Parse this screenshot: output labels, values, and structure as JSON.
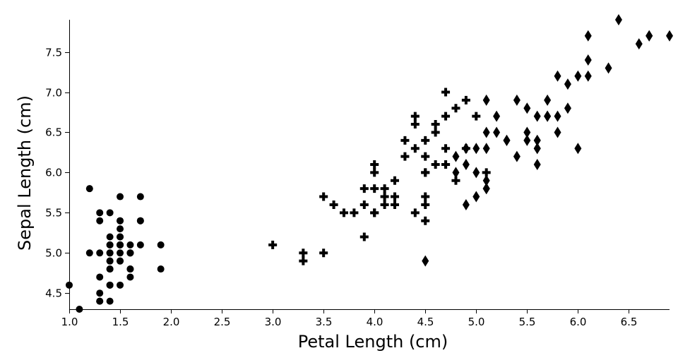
{
  "chart_data": {
    "type": "scatter",
    "xlabel": "Petal Length (cm)",
    "ylabel": "Sepal Length (cm)",
    "xlim": [
      1.0,
      6.9
    ],
    "ylim": [
      4.3,
      7.9
    ],
    "xticks": [
      "1.0",
      "1.5",
      "2.0",
      "2.5",
      "3.0",
      "3.5",
      "4.0",
      "4.5",
      "5.0",
      "5.5",
      "6.0",
      "6.5"
    ],
    "yticks": [
      "4.5",
      "5.0",
      "5.5",
      "6.0",
      "6.5",
      "7.0",
      "7.5"
    ],
    "grid": false,
    "legend": "none",
    "series": [
      {
        "marker": "circle",
        "points": [
          [
            1.4,
            5.1
          ],
          [
            1.4,
            4.9
          ],
          [
            1.3,
            4.7
          ],
          [
            1.5,
            4.6
          ],
          [
            1.4,
            5.0
          ],
          [
            1.7,
            5.4
          ],
          [
            1.4,
            4.6
          ],
          [
            1.5,
            5.0
          ],
          [
            1.4,
            4.4
          ],
          [
            1.5,
            4.9
          ],
          [
            1.5,
            5.4
          ],
          [
            1.6,
            4.8
          ],
          [
            1.4,
            4.8
          ],
          [
            1.1,
            4.3
          ],
          [
            1.2,
            5.8
          ],
          [
            1.5,
            5.7
          ],
          [
            1.3,
            5.4
          ],
          [
            1.4,
            5.1
          ],
          [
            1.7,
            5.7
          ],
          [
            1.5,
            5.1
          ],
          [
            1.7,
            5.4
          ],
          [
            1.5,
            5.1
          ],
          [
            1.0,
            4.6
          ],
          [
            1.7,
            5.1
          ],
          [
            1.9,
            4.8
          ],
          [
            1.6,
            5.0
          ],
          [
            1.6,
            5.0
          ],
          [
            1.5,
            5.2
          ],
          [
            1.4,
            5.2
          ],
          [
            1.6,
            4.7
          ],
          [
            1.6,
            4.8
          ],
          [
            1.5,
            5.4
          ],
          [
            1.5,
            5.2
          ],
          [
            1.4,
            5.5
          ],
          [
            1.5,
            4.9
          ],
          [
            1.2,
            5.0
          ],
          [
            1.3,
            5.5
          ],
          [
            1.4,
            4.9
          ],
          [
            1.3,
            4.4
          ],
          [
            1.5,
            5.1
          ],
          [
            1.3,
            5.0
          ],
          [
            1.3,
            4.5
          ],
          [
            1.3,
            4.4
          ],
          [
            1.6,
            5.0
          ],
          [
            1.9,
            5.1
          ],
          [
            1.4,
            4.8
          ],
          [
            1.6,
            5.1
          ],
          [
            1.4,
            4.6
          ],
          [
            1.5,
            5.3
          ],
          [
            1.4,
            5.0
          ]
        ]
      },
      {
        "marker": "plus",
        "points": [
          [
            4.7,
            7.0
          ],
          [
            4.5,
            6.4
          ],
          [
            4.9,
            6.9
          ],
          [
            4.0,
            5.5
          ],
          [
            4.6,
            6.5
          ],
          [
            4.5,
            5.7
          ],
          [
            4.7,
            6.3
          ],
          [
            3.3,
            4.9
          ],
          [
            4.6,
            6.6
          ],
          [
            3.9,
            5.2
          ],
          [
            3.5,
            5.0
          ],
          [
            4.2,
            5.9
          ],
          [
            4.0,
            6.0
          ],
          [
            4.7,
            6.1
          ],
          [
            3.6,
            5.6
          ],
          [
            4.4,
            6.7
          ],
          [
            4.5,
            5.6
          ],
          [
            4.1,
            5.8
          ],
          [
            4.5,
            6.2
          ],
          [
            3.9,
            5.6
          ],
          [
            4.8,
            5.9
          ],
          [
            4.0,
            6.1
          ],
          [
            4.9,
            6.3
          ],
          [
            4.7,
            6.1
          ],
          [
            4.3,
            6.4
          ],
          [
            4.4,
            6.6
          ],
          [
            4.8,
            6.8
          ],
          [
            5.0,
            6.7
          ],
          [
            4.5,
            6.0
          ],
          [
            3.5,
            5.7
          ],
          [
            3.8,
            5.5
          ],
          [
            3.7,
            5.5
          ],
          [
            3.9,
            5.8
          ],
          [
            5.1,
            6.0
          ],
          [
            4.5,
            5.4
          ],
          [
            4.5,
            6.0
          ],
          [
            4.7,
            6.7
          ],
          [
            4.4,
            6.3
          ],
          [
            4.1,
            5.6
          ],
          [
            4.0,
            5.5
          ],
          [
            4.4,
            5.5
          ],
          [
            4.6,
            6.1
          ],
          [
            4.0,
            5.8
          ],
          [
            3.3,
            5.0
          ],
          [
            4.2,
            5.6
          ],
          [
            4.2,
            5.7
          ],
          [
            4.2,
            5.7
          ],
          [
            4.3,
            6.2
          ],
          [
            3.0,
            5.1
          ],
          [
            4.1,
            5.7
          ]
        ]
      },
      {
        "marker": "diamond",
        "points": [
          [
            6.0,
            6.3
          ],
          [
            5.1,
            5.8
          ],
          [
            5.9,
            7.1
          ],
          [
            5.6,
            6.3
          ],
          [
            5.8,
            6.5
          ],
          [
            6.6,
            7.6
          ],
          [
            4.5,
            4.9
          ],
          [
            6.3,
            7.3
          ],
          [
            5.8,
            6.7
          ],
          [
            6.1,
            7.2
          ],
          [
            5.1,
            6.5
          ],
          [
            5.3,
            6.4
          ],
          [
            5.5,
            6.8
          ],
          [
            5.0,
            5.7
          ],
          [
            5.1,
            5.8
          ],
          [
            5.3,
            6.4
          ],
          [
            5.5,
            6.5
          ],
          [
            6.7,
            7.7
          ],
          [
            6.9,
            7.7
          ],
          [
            5.0,
            6.0
          ],
          [
            5.7,
            6.9
          ],
          [
            4.9,
            5.6
          ],
          [
            6.7,
            7.7
          ],
          [
            4.9,
            6.3
          ],
          [
            5.7,
            6.7
          ],
          [
            6.0,
            7.2
          ],
          [
            4.8,
            6.2
          ],
          [
            4.9,
            6.1
          ],
          [
            5.6,
            6.4
          ],
          [
            5.8,
            7.2
          ],
          [
            6.1,
            7.4
          ],
          [
            6.4,
            7.9
          ],
          [
            5.6,
            6.4
          ],
          [
            5.1,
            6.3
          ],
          [
            5.6,
            6.1
          ],
          [
            6.1,
            7.7
          ],
          [
            5.6,
            6.3
          ],
          [
            5.5,
            6.4
          ],
          [
            4.8,
            6.0
          ],
          [
            5.4,
            6.9
          ],
          [
            5.6,
            6.7
          ],
          [
            5.1,
            6.9
          ],
          [
            5.1,
            5.8
          ],
          [
            5.9,
            6.8
          ],
          [
            5.7,
            6.7
          ],
          [
            5.2,
            6.7
          ],
          [
            5.0,
            6.3
          ],
          [
            5.2,
            6.5
          ],
          [
            5.4,
            6.2
          ],
          [
            5.1,
            5.9
          ]
        ]
      }
    ]
  }
}
